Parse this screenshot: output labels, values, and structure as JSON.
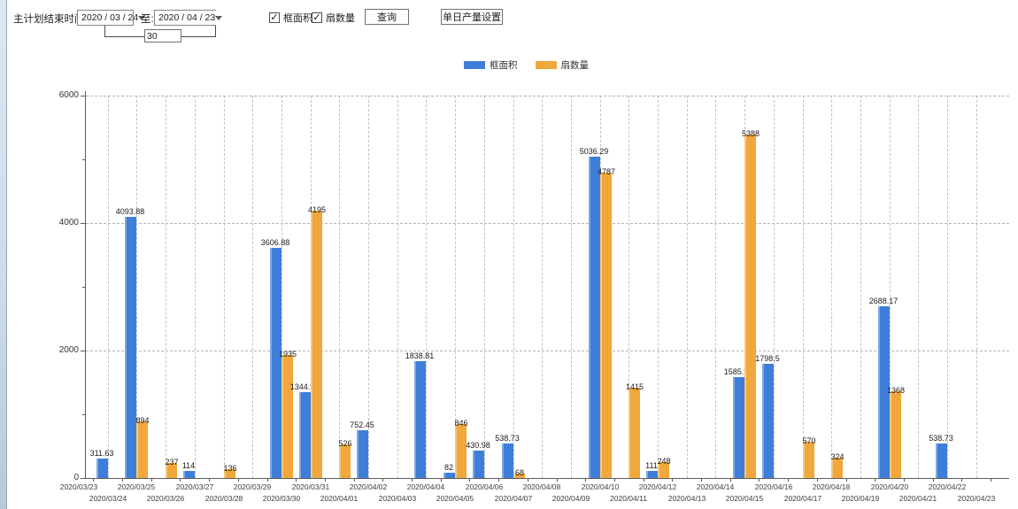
{
  "toolbar": {
    "label_start": "主计划结束时间:",
    "date_from": "2020 / 03 / 24",
    "label_to": "至:",
    "date_to": "2020 / 04 / 23",
    "days_between": "30",
    "checkbox_frame_area": "框面积",
    "checkbox_fan_count": "扇数量",
    "query_button": "查询",
    "daily_output_button": "单日产量设置"
  },
  "legend": [
    {
      "label": "框面积",
      "color": "#3E7ED9"
    },
    {
      "label": "扇数量",
      "color": "#F0A73C"
    }
  ],
  "chart_data": {
    "type": "bar",
    "title": "",
    "xlabel": "",
    "ylabel": "",
    "ylim": [
      0,
      6000
    ],
    "yticks": [
      0,
      2000,
      4000,
      6000
    ],
    "yticks_minor": [
      1000,
      3000,
      5000
    ],
    "grid": true,
    "legend_position": "top",
    "categories": [
      "2020/03/23",
      "2020/03/24",
      "2020/03/25",
      "2020/03/26",
      "2020/03/27",
      "2020/03/28",
      "2020/03/29",
      "2020/03/30",
      "2020/03/31",
      "2020/04/01",
      "2020/04/02",
      "2020/04/03",
      "2020/04/04",
      "2020/04/05",
      "2020/04/06",
      "2020/04/07",
      "2020/04/08",
      "2020/04/09",
      "2020/04/10",
      "2020/04/11",
      "2020/04/12",
      "2020/04/13",
      "2020/04/14",
      "2020/04/15",
      "2020/04/16",
      "2020/04/17",
      "2020/04/18",
      "2020/04/19",
      "2020/04/20",
      "2020/04/21",
      "2020/04/22",
      "2020/04/23"
    ],
    "series": [
      {
        "name": "框面积",
        "color": "#3E7ED9",
        "edge_color": "#7CA9E6",
        "values": [
          null,
          311.63,
          4093.88,
          null,
          114,
          null,
          null,
          3606.88,
          1344.95,
          null,
          752.45,
          null,
          1838.81,
          82,
          430.98,
          538.73,
          null,
          null,
          5036.29,
          null,
          111,
          null,
          null,
          1585.96,
          1798.5,
          null,
          null,
          null,
          2688.17,
          null,
          538.73,
          null
        ]
      },
      {
        "name": "扇数量",
        "color": "#F0A73C",
        "edge_color": "#F7C87B",
        "values": [
          null,
          null,
          894,
          237,
          null,
          136,
          null,
          1935,
          4195,
          526,
          null,
          null,
          null,
          846,
          null,
          68,
          null,
          null,
          4787,
          1415,
          248,
          null,
          null,
          5388,
          null,
          570,
          324,
          null,
          1368,
          null,
          null,
          null
        ]
      }
    ]
  }
}
